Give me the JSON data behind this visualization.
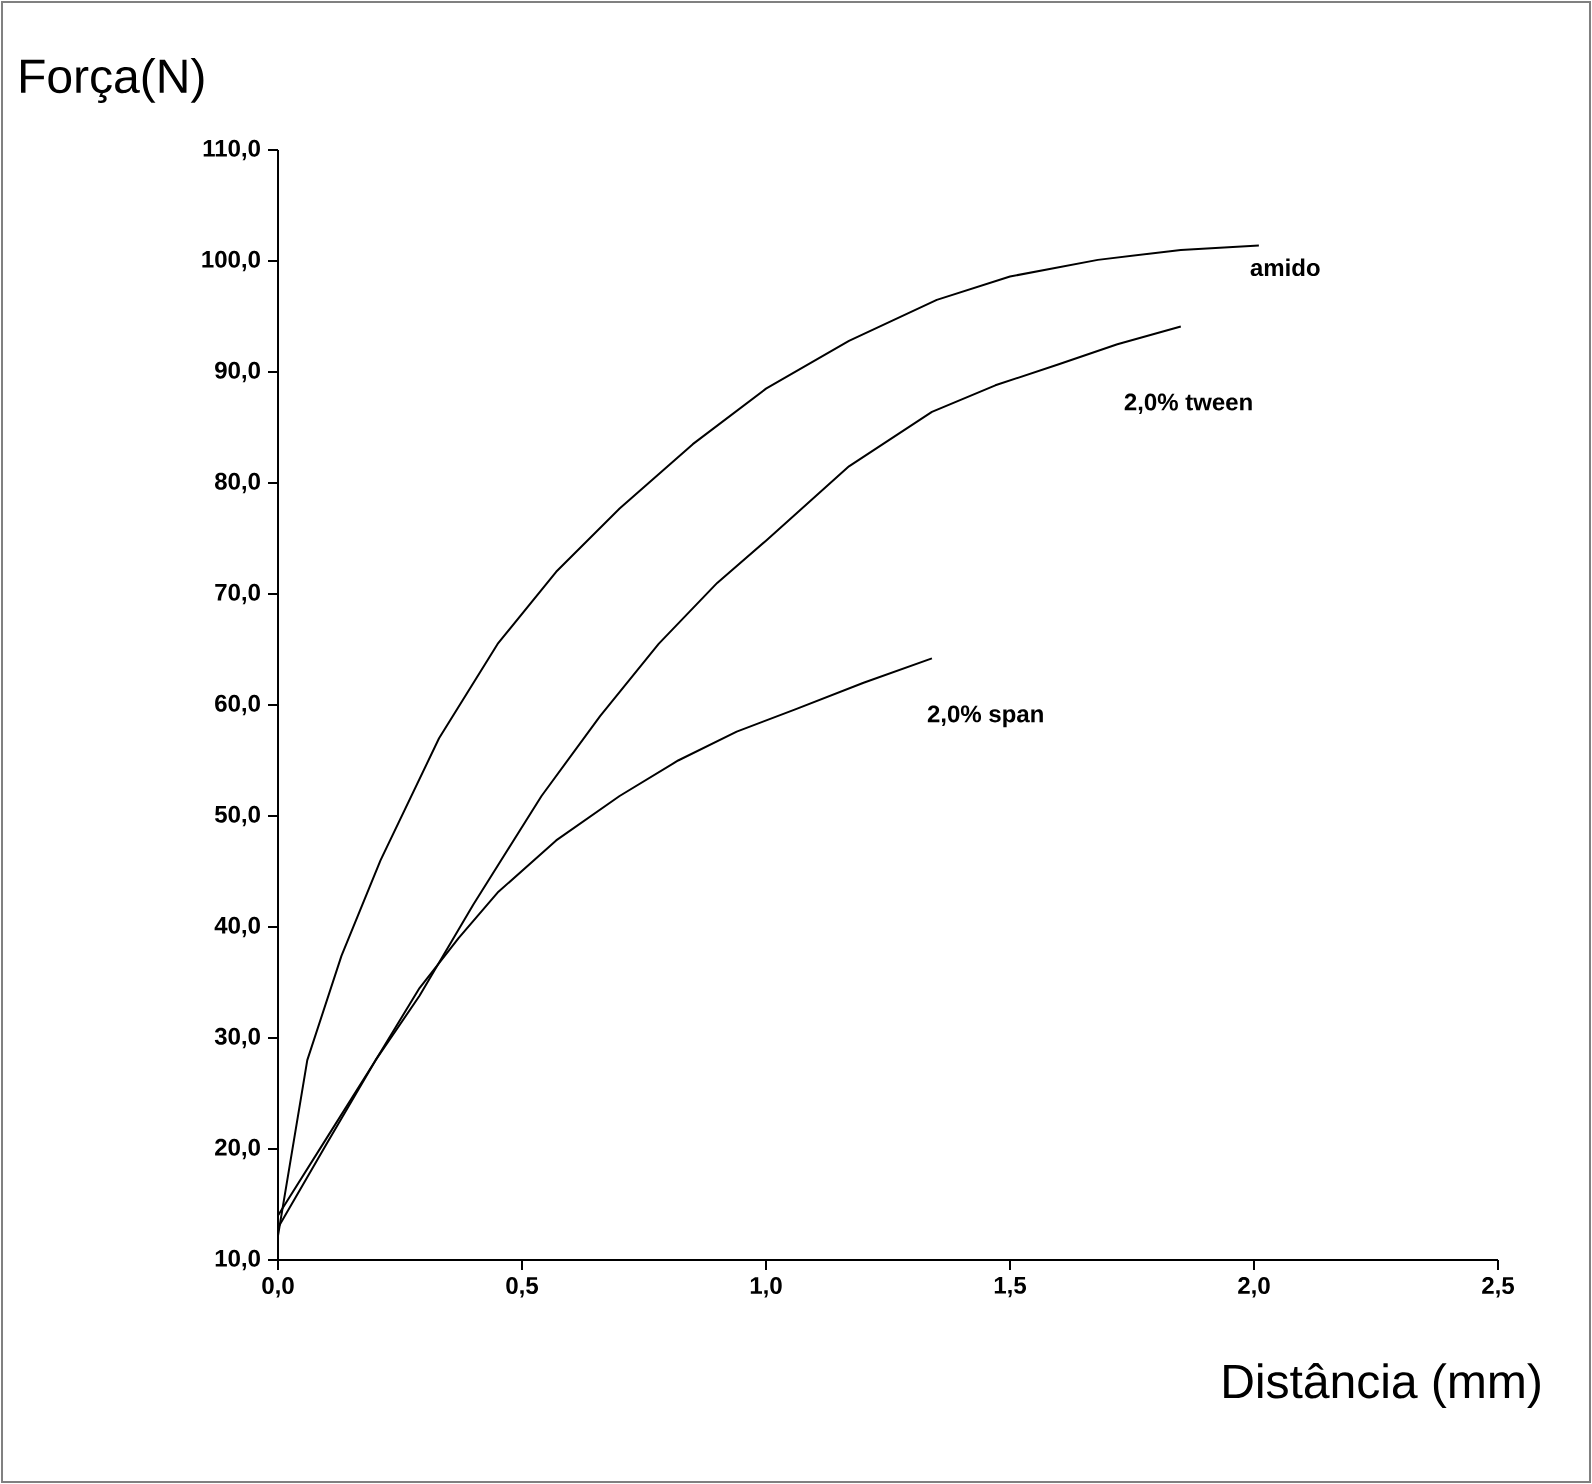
{
  "chart_data": {
    "type": "line",
    "xlabel": "Distância (mm)",
    "ylabel": "Força(N)",
    "xlim": [
      0,
      2.5
    ],
    "ylim": [
      10,
      110
    ],
    "xticks": [
      {
        "value": 0,
        "label": "0,0"
      },
      {
        "value": 0.5,
        "label": "0,5"
      },
      {
        "value": 1,
        "label": "1,0"
      },
      {
        "value": 1.5,
        "label": "1,5"
      },
      {
        "value": 2,
        "label": "2,0"
      },
      {
        "value": 2.5,
        "label": "2,5"
      }
    ],
    "yticks": [
      {
        "value": 10,
        "label": "10,0"
      },
      {
        "value": 20,
        "label": "20,0"
      },
      {
        "value": 30,
        "label": "30,0"
      },
      {
        "value": 40,
        "label": "40,0"
      },
      {
        "value": 50,
        "label": "50,0"
      },
      {
        "value": 60,
        "label": "60,0"
      },
      {
        "value": 70,
        "label": "70,0"
      },
      {
        "value": 80,
        "label": "80,0"
      },
      {
        "value": 90,
        "label": "90,0"
      },
      {
        "value": 100,
        "label": "100,0"
      },
      {
        "value": 110,
        "label": "110,0"
      }
    ],
    "grid": false,
    "legend": false,
    "marker": "none",
    "line_style": "solid",
    "series": [
      {
        "name": "amido",
        "color": "#000000",
        "x": [
          0,
          0.06,
          0.13,
          0.21,
          0.33,
          0.45,
          0.57,
          0.7,
          0.85,
          1.0,
          1.17,
          1.35,
          1.5,
          1.68,
          1.85,
          2.01
        ],
        "values": [
          12.2,
          28,
          37.4,
          46,
          57,
          65.5,
          72,
          77.7,
          83.5,
          88.5,
          92.8,
          96.5,
          98.6,
          100.1,
          101,
          101.4
        ]
      },
      {
        "name": "2,0% tween",
        "color": "#000000",
        "x": [
          0,
          0.1,
          0.2,
          0.29,
          0.4,
          0.54,
          0.66,
          0.78,
          0.9,
          1.0,
          1.17,
          1.34,
          1.47,
          1.6,
          1.72,
          1.85
        ],
        "values": [
          14,
          21,
          28,
          33.8,
          42,
          51.8,
          59,
          65.5,
          71,
          74.8,
          81.5,
          86.4,
          88.8,
          90.7,
          92.5,
          94.1
        ]
      },
      {
        "name": "2,0% span",
        "color": "#000000",
        "x": [
          0,
          0.1,
          0.2,
          0.29,
          0.37,
          0.45,
          0.57,
          0.7,
          0.82,
          0.94,
          1.06,
          1.2,
          1.34
        ],
        "values": [
          12.9,
          20.5,
          28,
          34.5,
          39,
          43.1,
          47.8,
          51.8,
          55,
          57.6,
          59.6,
          62,
          64.2
        ]
      }
    ]
  }
}
